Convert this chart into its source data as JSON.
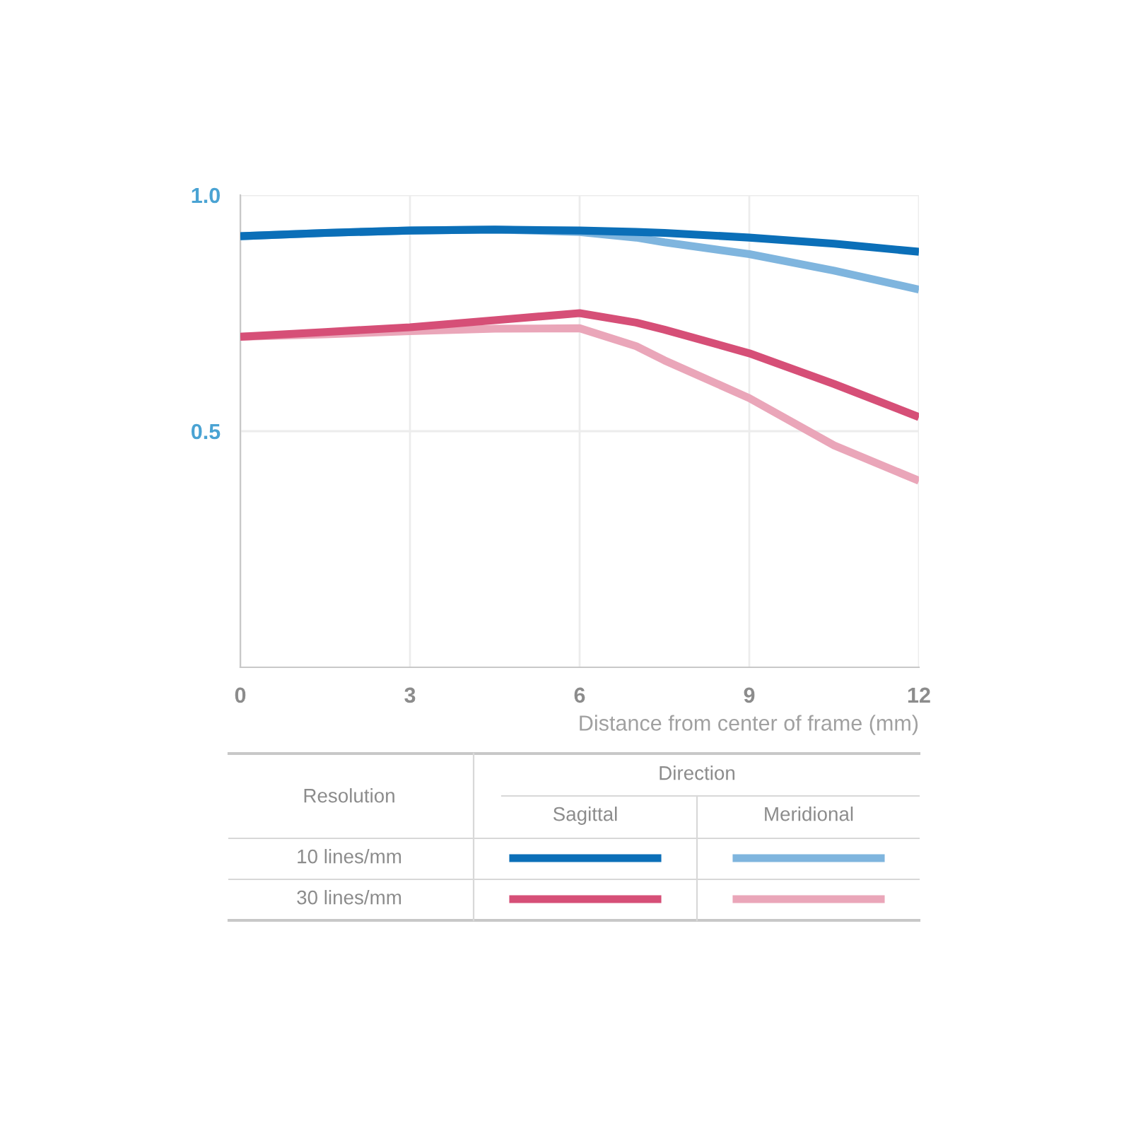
{
  "chart_data": {
    "type": "line",
    "xlabel": "Distance from center of frame (mm)",
    "x": [
      0,
      1.5,
      3,
      4.5,
      6,
      7,
      7.5,
      9,
      10.5,
      12
    ],
    "series": [
      {
        "color": "#0b6fb8",
        "values": [
          0.913,
          0.92,
          0.925,
          0.927,
          0.925,
          0.922,
          0.92,
          0.91,
          0.897,
          0.88
        ]
      },
      {
        "color": "#7fb5de",
        "values": [
          0.913,
          0.92,
          0.925,
          0.927,
          0.922,
          0.91,
          0.9,
          0.875,
          0.84,
          0.8
        ]
      },
      {
        "color": "#d64f77",
        "values": [
          0.7,
          0.71,
          0.72,
          0.735,
          0.75,
          0.73,
          0.715,
          0.665,
          0.6,
          0.53
        ]
      },
      {
        "color": "#eaa6b9",
        "values": [
          0.7,
          0.705,
          0.712,
          0.717,
          0.718,
          0.68,
          0.65,
          0.57,
          0.47,
          0.395
        ]
      }
    ],
    "xlim": [
      0,
      12
    ],
    "ylim": [
      0,
      1.0
    ],
    "xticks": [
      0,
      3,
      6,
      9,
      12
    ],
    "yticks": [
      0.5,
      {
        "value": 1.0,
        "label": "1.0"
      }
    ],
    "grid": true,
    "annotations": [
      "Resolution",
      "Direction",
      "Sagittal",
      "Meridional",
      "10 lines/mm",
      "30 lines/mm"
    ]
  }
}
